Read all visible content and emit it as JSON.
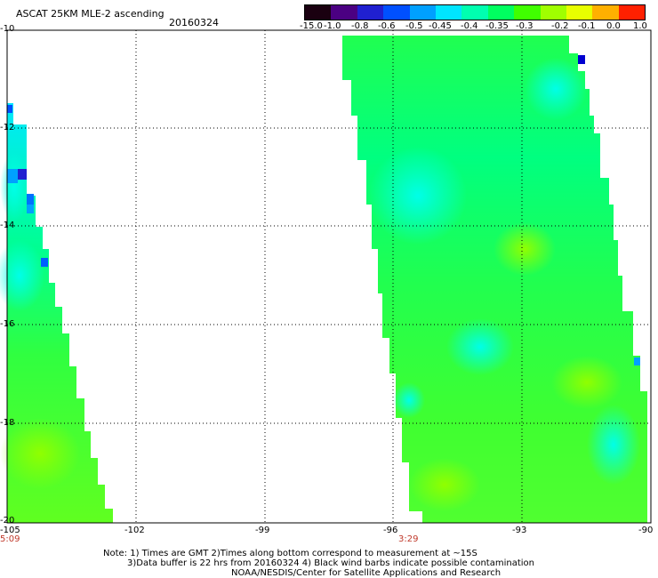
{
  "title": "ASCAT 25KM MLE-2 ascending",
  "date": "20160324",
  "colorbar": {
    "labels": [
      "-15.0",
      "-1.0",
      "-0.8",
      "-0.6",
      "-0.5",
      "-0.45",
      "-0.4",
      "-0.35",
      "-0.3",
      "-0.2",
      "-0.1",
      "0.0",
      "1.0"
    ],
    "colors": [
      "#1a0010",
      "#4b0082",
      "#2020d0",
      "#0050ff",
      "#00a0ff",
      "#00e5ff",
      "#00ffb0",
      "#00ff60",
      "#40ff00",
      "#a0ff00",
      "#e8ff00",
      "#ffb000",
      "#ff2000"
    ]
  },
  "lat_labels": [
    "-10",
    "-12",
    "-14",
    "-16",
    "-18",
    "-20"
  ],
  "lon_labels": [
    "-105",
    "-102",
    "-99",
    "-96",
    "-93",
    "-90"
  ],
  "time_labels": [
    "5:09",
    "3:29"
  ],
  "notes": [
    "Note: 1) Times are GMT 2)Times along bottom correspond to measurement at ~15S",
    "3)Data buffer is 22 hrs from 20160324 4) Black wind barbs indicate possible contamination",
    "NOAA/NESDIS/Center for Satellite Applications and Research"
  ]
}
